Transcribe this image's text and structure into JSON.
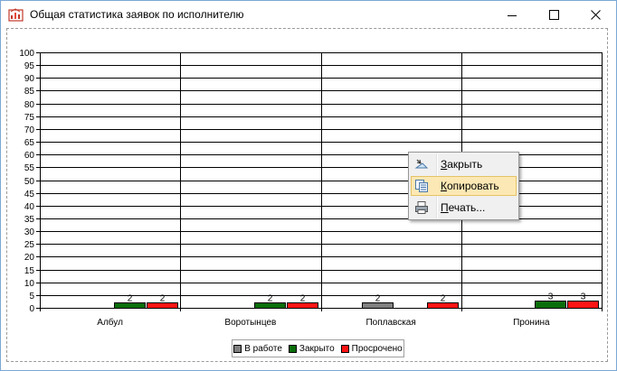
{
  "window": {
    "title": "Общая статистика заявок по исполнителю"
  },
  "legend": {
    "items": [
      {
        "label": "В работе",
        "color": "#808080"
      },
      {
        "label": "Закрыто",
        "color": "#0a6e0a"
      },
      {
        "label": "Просрочено",
        "color": "#ff1414"
      }
    ]
  },
  "context_menu": {
    "items": [
      {
        "key": "З",
        "rest": "акрыть",
        "icon": "close-chart-icon"
      },
      {
        "key": "К",
        "rest": "опировать",
        "icon": "copy-icon",
        "highlighted": true
      },
      {
        "key": "П",
        "rest": "ечать...",
        "icon": "print-icon"
      }
    ]
  },
  "chart_data": {
    "type": "bar",
    "categories": [
      "Албул",
      "Воротынцев",
      "Поплавская",
      "Пронина"
    ],
    "series": [
      {
        "name": "В работе",
        "color": "#808080",
        "values": [
          0,
          0,
          2,
          0
        ]
      },
      {
        "name": "Закрыто",
        "color": "#0a6e0a",
        "values": [
          2,
          2,
          0,
          3
        ]
      },
      {
        "name": "Просрочено",
        "color": "#ff1414",
        "values": [
          2,
          2,
          2,
          3
        ]
      }
    ],
    "ylim": [
      0,
      100
    ],
    "ytick_step": 5,
    "grid": true,
    "legend_position": "bottom"
  }
}
